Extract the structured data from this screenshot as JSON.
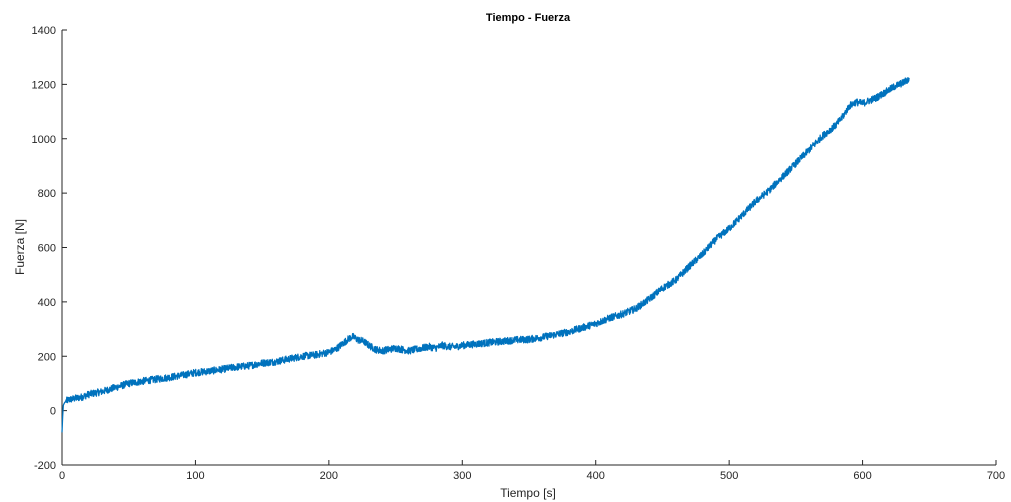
{
  "chart_data": {
    "type": "line",
    "title": "Tiempo - Fuerza",
    "xlabel": "Tiempo [s]",
    "ylabel": "Fuerza [N]",
    "xlim": [
      0,
      700
    ],
    "ylim": [
      -200,
      1400
    ],
    "xticks": [
      0,
      100,
      200,
      300,
      400,
      500,
      600,
      700
    ],
    "yticks": [
      -200,
      0,
      200,
      400,
      600,
      800,
      1000,
      1200,
      1400
    ],
    "grid": false,
    "legend": "none",
    "series_color": "#0072BD",
    "axis_color": "#262626",
    "series": [
      {
        "x": [
          0,
          0.5,
          1,
          2,
          3,
          5,
          10,
          15,
          20,
          30,
          40,
          50,
          60,
          70,
          80,
          90,
          100,
          110,
          120,
          130,
          140,
          150,
          160,
          170,
          180,
          190,
          200,
          205,
          210,
          215,
          218,
          222,
          226,
          230,
          235,
          240,
          245,
          250,
          255,
          260,
          265,
          270,
          275,
          280,
          285,
          290,
          295,
          300,
          310,
          320,
          330,
          340,
          350,
          360,
          370,
          380,
          390,
          400,
          410,
          420,
          430,
          440,
          450,
          460,
          470,
          480,
          490,
          500,
          510,
          520,
          530,
          540,
          550,
          560,
          570,
          580,
          585,
          590,
          595,
          600,
          605,
          610,
          615,
          620,
          625,
          630,
          635
        ],
        "y": [
          -80,
          -20,
          20,
          30,
          35,
          40,
          45,
          50,
          60,
          70,
          85,
          100,
          108,
          115,
          122,
          130,
          140,
          145,
          152,
          160,
          165,
          175,
          180,
          190,
          200,
          205,
          215,
          225,
          245,
          265,
          272,
          260,
          255,
          240,
          225,
          220,
          225,
          230,
          225,
          220,
          225,
          230,
          235,
          230,
          240,
          235,
          235,
          240,
          245,
          250,
          255,
          260,
          262,
          270,
          280,
          290,
          305,
          320,
          340,
          355,
          375,
          410,
          450,
          480,
          530,
          575,
          630,
          670,
          720,
          770,
          810,
          860,
          910,
          960,
          1010,
          1050,
          1080,
          1120,
          1135,
          1130,
          1140,
          1150,
          1165,
          1180,
          1195,
          1205,
          1220
        ]
      }
    ]
  }
}
